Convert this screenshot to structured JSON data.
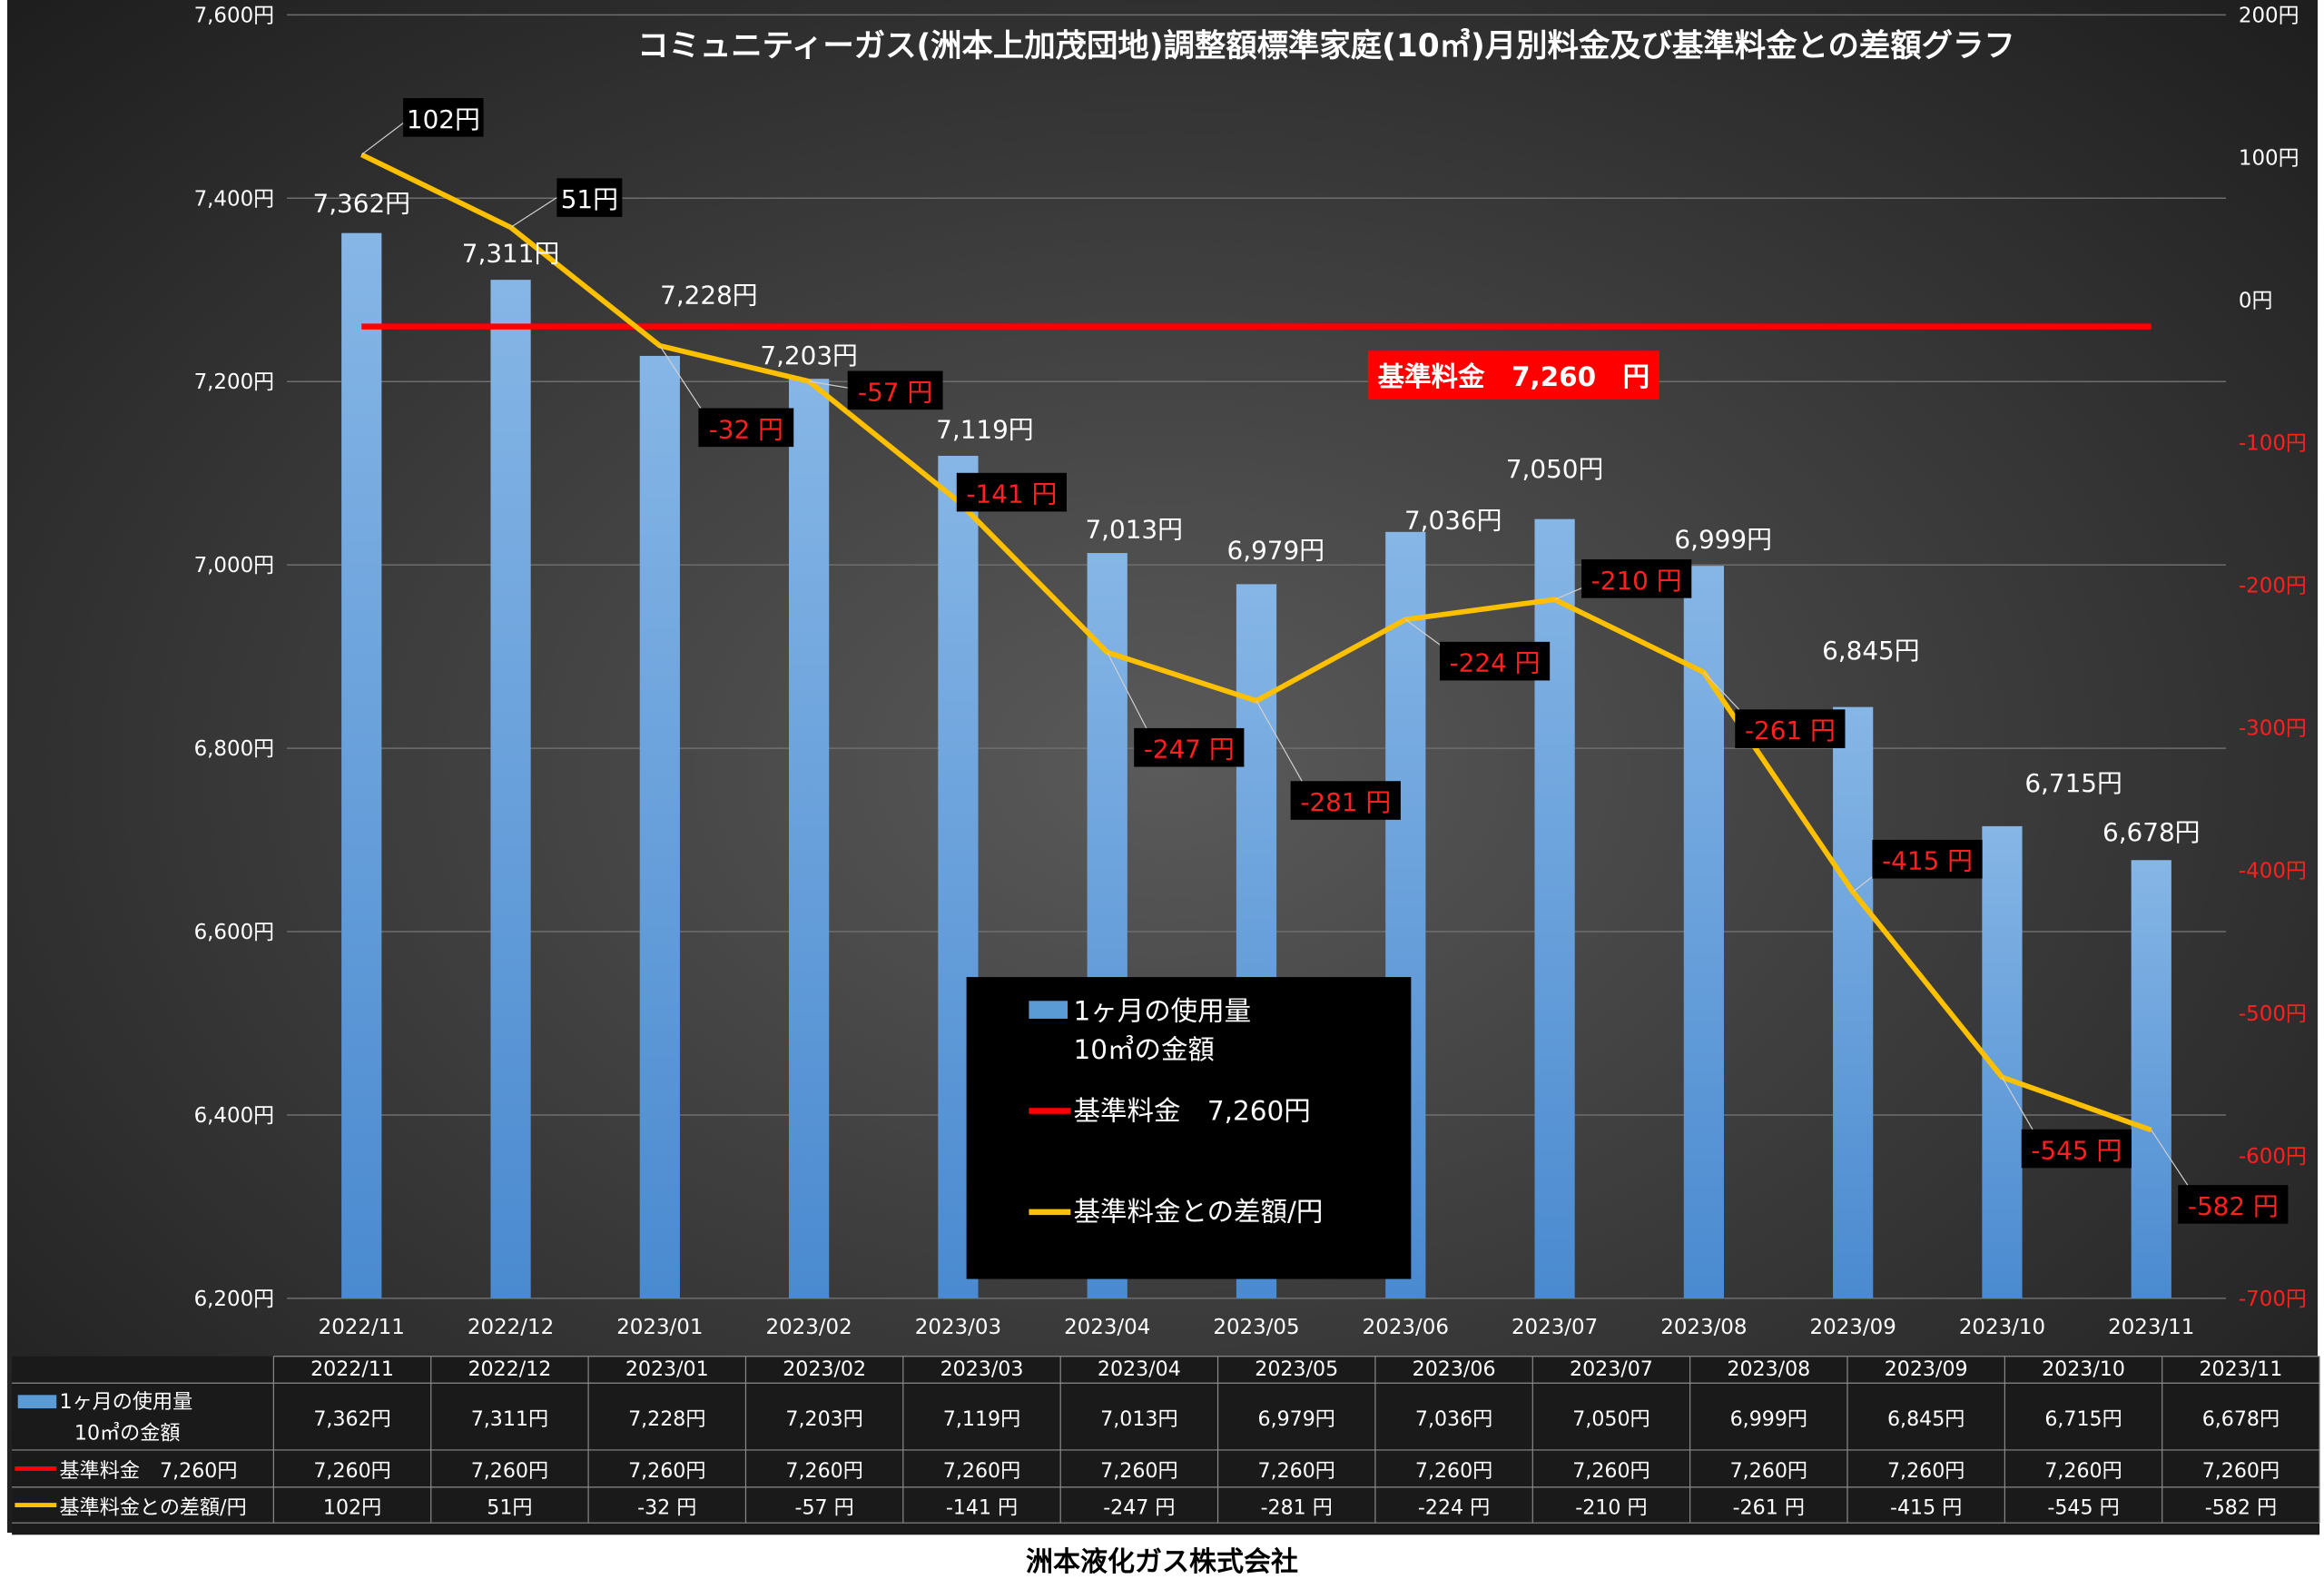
{
  "chart_data": {
    "type": "bar",
    "title": "コミュニティーガス(洲本上加茂団地)調整額標準家庭(10㎥)月別料金及び基準料金との差額グラフ",
    "categories": [
      "2022/11",
      "2022/12",
      "2023/01",
      "2023/02",
      "2023/03",
      "2023/04",
      "2023/05",
      "2023/06",
      "2023/07",
      "2023/08",
      "2023/09",
      "2023/10",
      "2023/11"
    ],
    "y_left": {
      "min": 6200,
      "max": 7600,
      "ticks": [
        "6,200円",
        "6,400円",
        "6,600円",
        "6,800円",
        "7,000円",
        "7,200円",
        "7,400円",
        "7,600円"
      ]
    },
    "y_right": {
      "min": -700,
      "max": 200,
      "ticks": [
        "200円",
        "100円",
        "0円",
        "-100円",
        "-200円",
        "-300円",
        "-400円",
        "-500円",
        "-600円",
        "-700円"
      ]
    },
    "grid": true,
    "series": [
      {
        "name": "1ヶ月の使用量 10㎥の金額",
        "legend_lines": [
          "1ヶ月の使用量",
          "10㎥の金額"
        ],
        "type": "bar",
        "axis": "left",
        "color": "#5b9bd5",
        "values": [
          7362,
          7311,
          7228,
          7203,
          7119,
          7013,
          6979,
          7036,
          7050,
          6999,
          6845,
          6715,
          6678
        ],
        "labels": [
          "7,362円",
          "7,311円",
          "7,228円",
          "7,203円",
          "7,119円",
          "7,013円",
          "6,979円",
          "7,036円",
          "7,050円",
          "6,999円",
          "6,845円",
          "6,715円",
          "6,678円"
        ]
      },
      {
        "name": "基準料金 7,260円",
        "legend_text": "基準料金　7,260円",
        "type": "line",
        "axis": "left",
        "color": "#ff0000",
        "values": [
          7260,
          7260,
          7260,
          7260,
          7260,
          7260,
          7260,
          7260,
          7260,
          7260,
          7260,
          7260,
          7260
        ],
        "labels": [
          "7,260円",
          "7,260円",
          "7,260円",
          "7,260円",
          "7,260円",
          "7,260円",
          "7,260円",
          "7,260円",
          "7,260円",
          "7,260円",
          "7,260円",
          "7,260円",
          "7,260円"
        ]
      },
      {
        "name": "基準料金との差額/円",
        "legend_text": "基準料金との差額/円",
        "type": "line",
        "axis": "right",
        "color": "#ffc000",
        "values": [
          102,
          51,
          -32,
          -57,
          -141,
          -247,
          -281,
          -224,
          -210,
          -261,
          -415,
          -545,
          -582
        ],
        "labels": [
          "102円",
          "51円",
          "-32 円",
          "-57 円",
          "-141 円",
          "-247 円",
          "-281 円",
          "-224 円",
          "-210 円",
          "-261 円",
          "-415 円",
          "-545 円",
          "-582 円"
        ],
        "chart_labels": [
          "102円",
          "51円",
          "-32 円",
          "-57 円",
          "-141 円",
          "-247 円",
          "-281 円",
          "-224 円",
          "-210 円",
          "-261 円",
          "-415 円",
          "-545 円",
          "-582 円"
        ]
      }
    ],
    "annotation": "基準料金　7,260　円",
    "table_row_labels": [
      "1ヶ月の使用量",
      "10㎥の金額",
      "基準料金　7,260円",
      "基準料金との差額/円"
    ],
    "legend_position": "center-bottom"
  },
  "footer": "洲本液化ガス株式会社",
  "colors": {
    "bar": "#5b9bd5",
    "base_line": "#ff0000",
    "diff_line": "#ffc000",
    "background": "#3a3a3a"
  }
}
